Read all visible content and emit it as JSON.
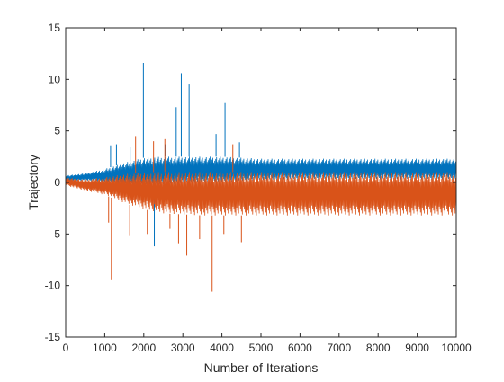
{
  "chart_data": {
    "type": "line",
    "xlabel": "Number of Iterations",
    "ylabel": "Trajectory",
    "xlim": [
      0,
      10000
    ],
    "ylim": [
      -15,
      15
    ],
    "x_ticks": [
      0,
      1000,
      2000,
      3000,
      4000,
      5000,
      6000,
      7000,
      8000,
      9000,
      10000
    ],
    "y_ticks": [
      -15,
      -10,
      -5,
      0,
      5,
      10,
      15
    ],
    "x_tick_labels": [
      "0",
      "1000",
      "2000",
      "3000",
      "4000",
      "5000",
      "6000",
      "7000",
      "8000",
      "9000",
      "10000"
    ],
    "y_tick_labels": [
      "-15",
      "-10",
      "-5",
      "0",
      "5",
      "10",
      "15"
    ],
    "grid": false,
    "series": [
      {
        "color": "#0072BD",
        "envelope": {
          "x": [
            0,
            500,
            1000,
            1500,
            2000,
            2500,
            3000,
            3500,
            4000,
            4500,
            5000,
            6000,
            7000,
            8000,
            9000,
            10000
          ],
          "upper": [
            0.7,
            0.9,
            1.3,
            1.9,
            2.4,
            2.5,
            2.5,
            2.5,
            2.5,
            2.4,
            2.3,
            2.3,
            2.3,
            2.3,
            2.3,
            2.3
          ],
          "lower": [
            0.1,
            0.2,
            0.0,
            -0.2,
            -0.3,
            -0.2,
            -0.1,
            0.0,
            0.0,
            0.1,
            0.2,
            0.3,
            0.3,
            0.3,
            0.3,
            0.3
          ]
        },
        "spikes": [
          {
            "x": 1150,
            "y": 3.6
          },
          {
            "x": 1300,
            "y": 3.7
          },
          {
            "x": 1650,
            "y": 3.4
          },
          {
            "x": 1990,
            "y": 11.6
          },
          {
            "x": 2270,
            "y": -6.2
          },
          {
            "x": 2550,
            "y": 3.7
          },
          {
            "x": 2830,
            "y": 7.3
          },
          {
            "x": 2960,
            "y": 10.6
          },
          {
            "x": 3160,
            "y": 9.5
          },
          {
            "x": 3850,
            "y": 4.7
          },
          {
            "x": 4080,
            "y": 7.7
          },
          {
            "x": 4450,
            "y": 3.9
          }
        ]
      },
      {
        "color": "#D95319",
        "envelope": {
          "x": [
            0,
            500,
            1000,
            1500,
            2000,
            2500,
            3000,
            3500,
            4000,
            4500,
            5000,
            6000,
            7000,
            8000,
            9000,
            10000
          ],
          "upper": [
            0.5,
            0.3,
            0.5,
            0.8,
            1.0,
            1.0,
            1.0,
            1.0,
            1.0,
            1.0,
            1.0,
            1.0,
            1.0,
            1.0,
            1.0,
            1.0
          ],
          "lower": [
            -0.3,
            -0.8,
            -1.2,
            -2.0,
            -2.6,
            -3.0,
            -3.1,
            -3.2,
            -3.2,
            -3.2,
            -3.2,
            -3.2,
            -3.2,
            -3.2,
            -3.2,
            -3.2
          ]
        },
        "spikes": [
          {
            "x": 1100,
            "y": -3.9
          },
          {
            "x": 1170,
            "y": -9.4
          },
          {
            "x": 1640,
            "y": -5.2
          },
          {
            "x": 1790,
            "y": 4.5
          },
          {
            "x": 2090,
            "y": -5.0
          },
          {
            "x": 2250,
            "y": 4.0
          },
          {
            "x": 2540,
            "y": 4.2
          },
          {
            "x": 2670,
            "y": -4.5
          },
          {
            "x": 2890,
            "y": -5.9
          },
          {
            "x": 3100,
            "y": -7.1
          },
          {
            "x": 3430,
            "y": -5.5
          },
          {
            "x": 3750,
            "y": -10.6
          },
          {
            "x": 4050,
            "y": -5.0
          },
          {
            "x": 4280,
            "y": 3.7
          },
          {
            "x": 4500,
            "y": -5.8
          }
        ]
      }
    ]
  }
}
